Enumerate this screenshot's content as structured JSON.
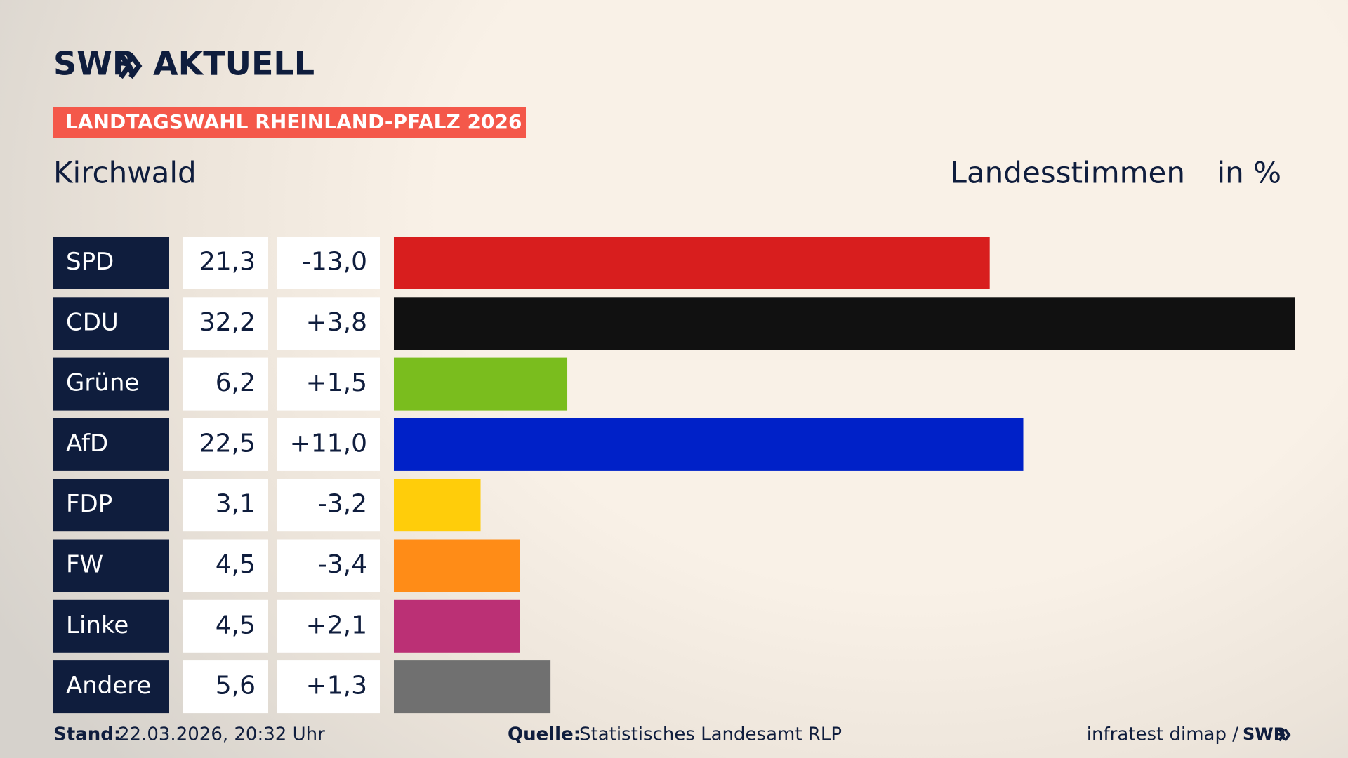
{
  "brand": "SWR",
  "brand_product": "AKTUELL",
  "tag": "LANDTAGSWAHL RHEINLAND-PFALZ 2026",
  "chart_data": {
    "type": "bar",
    "title": "Kirchwald",
    "subtitle": "Landesstimmen",
    "unit": "in %",
    "categories": [
      "SPD",
      "CDU",
      "Grüne",
      "AfD",
      "FDP",
      "FW",
      "Linke",
      "Andere"
    ],
    "values": [
      21.3,
      32.2,
      6.2,
      22.5,
      3.1,
      4.5,
      4.5,
      5.6
    ],
    "value_labels": [
      "21,3",
      "32,2",
      "6,2",
      "22,5",
      "3,1",
      "4,5",
      "4,5",
      "5,6"
    ],
    "changes": [
      -13.0,
      3.8,
      1.5,
      11.0,
      -3.2,
      -3.4,
      2.1,
      1.3
    ],
    "change_labels": [
      "-13,0",
      "+3,8",
      "+1,5",
      "+11,0",
      "-3,2",
      "-3,4",
      "+2,1",
      "+1,3"
    ],
    "colors": [
      "#d81e1e",
      "#111111",
      "#7abd1e",
      "#0021c8",
      "#ffcd0a",
      "#ff8c17",
      "#bb3075",
      "#707070"
    ]
  },
  "footer": {
    "stand_label": "Stand:",
    "stand": "22.03.2026, 20:32 Uhr",
    "source_label": "Quelle:",
    "source": "Statistisches Landesamt RLP",
    "credit": "infratest dimap /",
    "credit_brand": "SWR"
  }
}
